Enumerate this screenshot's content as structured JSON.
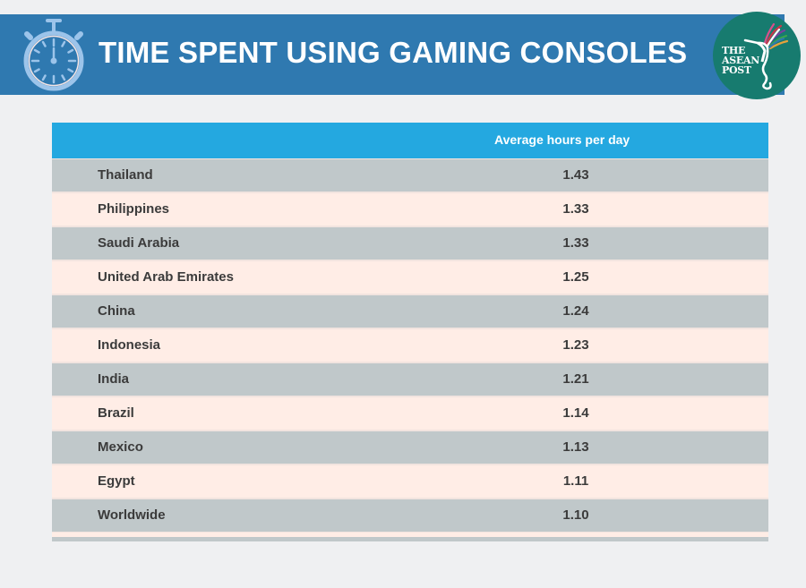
{
  "header": {
    "title": "TIME SPENT USING GAMING CONSOLES",
    "icon": "stopwatch-icon",
    "logo": {
      "lines": [
        "THE",
        "ASEAN",
        "POST"
      ],
      "background": "#177b6f"
    },
    "background": "#2f79b0"
  },
  "table": {
    "column_header": "Average hours per day",
    "header_background": "#24a8e0",
    "row_colors": [
      "#c0c8ca",
      "#ffede6"
    ],
    "rows": [
      {
        "country": "Thailand",
        "value": "1.43"
      },
      {
        "country": "Philippines",
        "value": "1.33"
      },
      {
        "country": "Saudi Arabia",
        "value": "1.33"
      },
      {
        "country": "United Arab Emirates",
        "value": "1.25"
      },
      {
        "country": "China",
        "value": "1.24"
      },
      {
        "country": "Indonesia",
        "value": "1.23"
      },
      {
        "country": "India",
        "value": "1.21"
      },
      {
        "country": "Brazil",
        "value": "1.14"
      },
      {
        "country": "Mexico",
        "value": "1.13"
      },
      {
        "country": "Egypt",
        "value": "1.11"
      },
      {
        "country": "Worldwide",
        "value": "1.10"
      }
    ]
  }
}
